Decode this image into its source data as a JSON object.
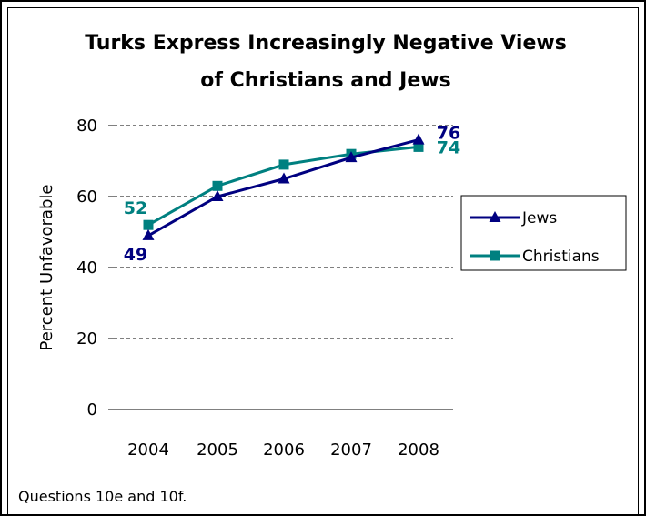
{
  "chart_data": {
    "type": "line",
    "title_line1": "Turks Express Increasingly Negative Views",
    "title_line2": "of Christians and Jews",
    "ylabel": "Percent Unfavorable",
    "xlabel": "",
    "categories": [
      "2004",
      "2005",
      "2006",
      "2007",
      "2008"
    ],
    "ylim": [
      0,
      80
    ],
    "yticks": [
      0,
      20,
      40,
      60,
      80
    ],
    "grid": true,
    "legend_position": "right",
    "series": [
      {
        "name": "Jews",
        "values": [
          49,
          60,
          65,
          71,
          76
        ],
        "color": "#000080",
        "marker": "triangle"
      },
      {
        "name": "Christians",
        "values": [
          52,
          63,
          69,
          72,
          74
        ],
        "color": "#008080",
        "marker": "square"
      }
    ],
    "annotations": [
      {
        "series": "Christians",
        "index": 0,
        "text": "52"
      },
      {
        "series": "Jews",
        "index": 0,
        "text": "49"
      },
      {
        "series": "Jews",
        "index": 4,
        "text": "76"
      },
      {
        "series": "Christians",
        "index": 4,
        "text": "74"
      }
    ]
  },
  "footnote": "Questions 10e and 10f."
}
